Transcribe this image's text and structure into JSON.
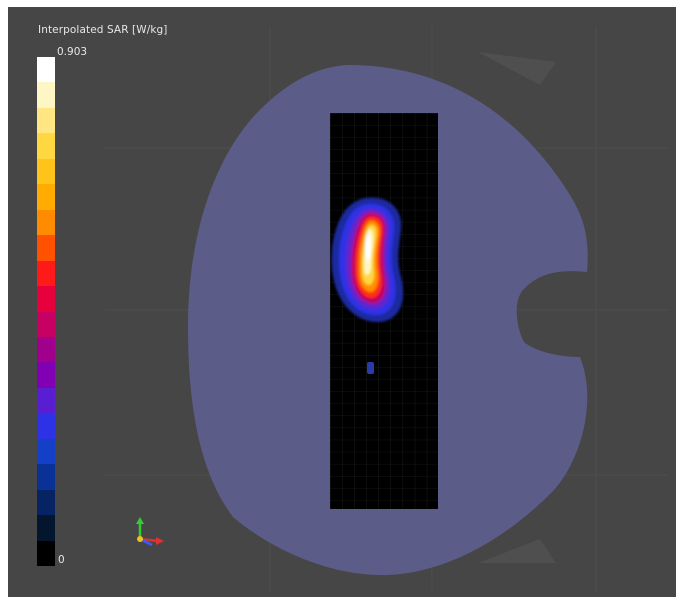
{
  "legend": {
    "title": "Interpolated SAR [W/kg]",
    "max_label": "0.903",
    "min_label": "0",
    "colors": [
      "#ffffff",
      "#fff6c6",
      "#ffe682",
      "#ffd740",
      "#ffc41a",
      "#ffab00",
      "#ff8b00",
      "#ff5100",
      "#ff1a1a",
      "#e6003c",
      "#c70064",
      "#a0008c",
      "#8200b4",
      "#5a1ed2",
      "#2d32e6",
      "#1440c8",
      "#0a3296",
      "#062464",
      "#03162d",
      "#000000"
    ]
  },
  "scene": {
    "background_color": "#464646",
    "phantom_color": "#5c5c88",
    "scan_area_color": "#000000",
    "hotspot": {
      "peak_value": "0.903",
      "unit": "W/kg"
    }
  },
  "axes_triad": {
    "x_color": "#e03030",
    "y_color": "#33cc33",
    "z_color": "#3060ff"
  }
}
